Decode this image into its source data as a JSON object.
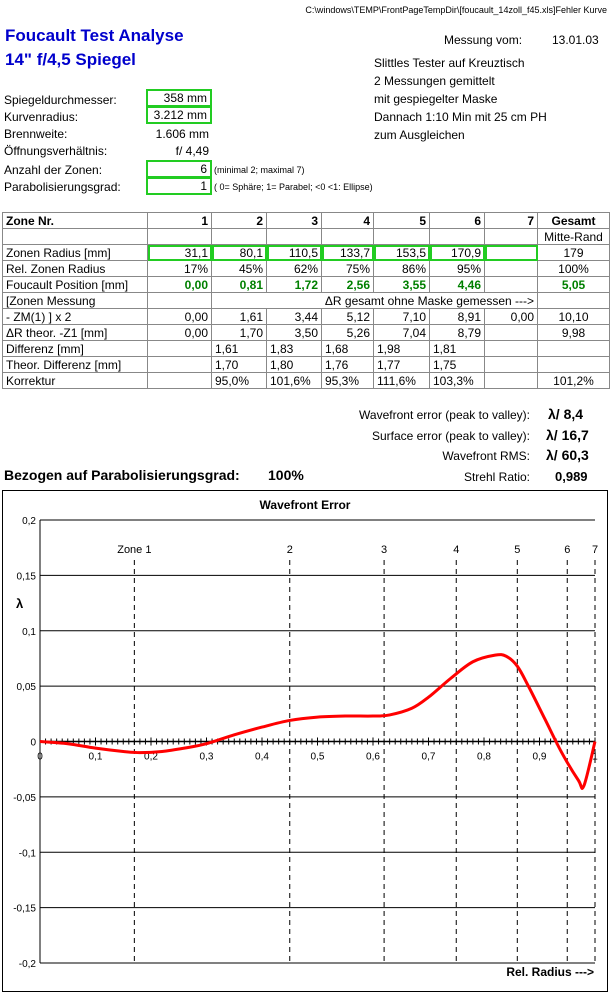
{
  "header": {
    "path": "C:\\windows\\TEMP\\FrontPageTempDir\\[foucault_14zoll_f45.xls]Fehler Kurve",
    "title1": "Foucault Test Analyse",
    "title2": "14\" f/4,5 Spiegel",
    "date_label": "Messung vom:",
    "date_value": "13.01.03"
  },
  "notes": [
    "Slittles Tester auf Kreuztisch",
    "2 Messungen gemittelt",
    "mit gespiegelter Maske",
    "Dannach 1:10 Min mit 25 cm PH",
    "zum Ausgleichen"
  ],
  "params": {
    "diam_label": "Spiegeldurchmesser:",
    "diam_value": "358 mm",
    "curve_label": "Kurvenradius:",
    "curve_value": "3.212 mm",
    "focal_label": "Brennweite:",
    "focal_value": "1.606 mm",
    "ratio_label": "Öffnungsverhältnis:",
    "ratio_value": "f/ 4,49",
    "zones_label": "Anzahl der Zonen:",
    "zones_value": "6",
    "zones_note": "(minimal 2; maximal 7)",
    "para_label": "Parabolisierungsgrad:",
    "para_value": "1",
    "para_note": "( 0= Sphäre; 1= Parabel; <0 <1: Ellipse)"
  },
  "table": {
    "header": [
      "Zone Nr.",
      "1",
      "2",
      "3",
      "4",
      "5",
      "6",
      "7",
      "Gesamt"
    ],
    "header2": "Mitte-Rand",
    "radius": [
      "Zonen Radius [mm]",
      "31,1",
      "80,1",
      "110,5",
      "133,7",
      "153,5",
      "170,9",
      "",
      "179"
    ],
    "rel": [
      "Rel. Zonen Radius",
      "17%",
      "45%",
      "62%",
      "75%",
      "86%",
      "95%",
      "",
      "100%"
    ],
    "foucault": [
      "Foucault Position [mm]",
      "0,00",
      "0,81",
      "1,72",
      "2,56",
      "3,55",
      "4,46",
      "",
      "5,05"
    ],
    "zm_label1": "[Zonen Messung",
    "zm_note": "ΔR gesamt ohne Maske gemessen --->",
    "zm": [
      " - ZM(1) ] x 2",
      "0,00",
      "1,61",
      "3,44",
      "5,12",
      "7,10",
      "8,91",
      "0,00",
      "10,10"
    ],
    "theo": [
      "ΔR theor. -Z1 [mm]",
      "0,00",
      "1,70",
      "3,50",
      "5,26",
      "7,04",
      "8,79",
      "",
      "9,98"
    ],
    "diff": [
      "Differenz [mm]",
      "",
      "1,61",
      "1,83",
      "1,68",
      "1,98",
      "1,81",
      "",
      ""
    ],
    "tdiff": [
      "Theor. Differenz [mm]",
      "",
      "1,70",
      "1,80",
      "1,76",
      "1,77",
      "1,75",
      "",
      ""
    ],
    "korr": [
      "Korrektur",
      "",
      "95,0%",
      "101,6%",
      "95,3%",
      "111,6%",
      "103,3%",
      "",
      "101,2%"
    ]
  },
  "summary": {
    "pv_label": "Wavefront error (peak to valley):",
    "pv_value": "λ/ 8,4",
    "surf_label": "Surface error (peak to valley):",
    "surf_value": "λ/ 16,7",
    "rms_label": "Wavefront RMS:",
    "rms_value": "λ/ 60,3",
    "strehl_label": "Strehl Ratio:",
    "strehl_value": "0,989",
    "bezogen_label": "Bezogen auf Parabolisierungsgrad:",
    "bezogen_value": "100%"
  },
  "chart_data": {
    "type": "line",
    "title": "Wavefront Error",
    "ylabel": "λ",
    "xlabel": "Rel. Radius --->",
    "xlim": [
      0,
      1
    ],
    "ylim": [
      -0.2,
      0.2
    ],
    "x_ticks": [
      "0",
      "0,1",
      "0,2",
      "0,3",
      "0,4",
      "0,5",
      "0,6",
      "0,7",
      "0,8",
      "0,9",
      "1"
    ],
    "y_ticks": [
      "0,2",
      "0,15",
      "0,1",
      "0,05",
      "0",
      "-0,05",
      "-0,1",
      "-0,15",
      "-0,2"
    ],
    "zones": [
      {
        "label": "Zone 1",
        "x": 0.17
      },
      {
        "label": "2",
        "x": 0.45
      },
      {
        "label": "3",
        "x": 0.62
      },
      {
        "label": "4",
        "x": 0.75
      },
      {
        "label": "5",
        "x": 0.86
      },
      {
        "label": "6",
        "x": 0.95
      },
      {
        "label": "7",
        "x": 1.0
      }
    ],
    "series": [
      {
        "color": "#ff0000",
        "x": [
          0,
          0.05,
          0.1,
          0.15,
          0.18,
          0.22,
          0.26,
          0.3,
          0.35,
          0.4,
          0.45,
          0.5,
          0.55,
          0.6,
          0.63,
          0.67,
          0.7,
          0.74,
          0.78,
          0.82,
          0.84,
          0.86,
          0.88,
          0.91,
          0.94,
          0.97,
          0.98,
          1.0
        ],
        "y": [
          0,
          -0.002,
          -0.006,
          -0.009,
          -0.01,
          -0.009,
          -0.006,
          -0.002,
          0.006,
          0.013,
          0.019,
          0.022,
          0.023,
          0.023,
          0.024,
          0.03,
          0.04,
          0.057,
          0.072,
          0.078,
          0.077,
          0.068,
          0.05,
          0.02,
          -0.01,
          -0.035,
          -0.04,
          0
        ]
      }
    ]
  }
}
